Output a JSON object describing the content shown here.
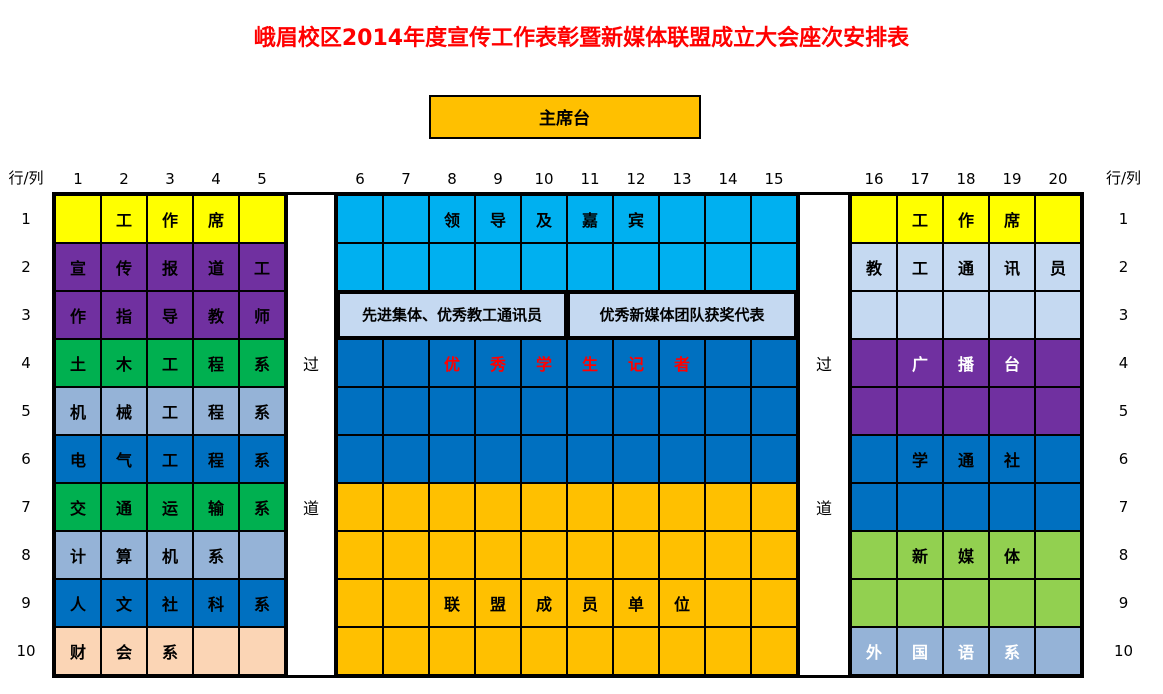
{
  "title": "峨眉校区2014年度宣传工作表彰暨新媒体联盟成立大会座次安排表",
  "stage_label": "主席台",
  "header": {
    "corner_left": "行/列",
    "corner_right": "行/列",
    "left_cols": [
      "1",
      "2",
      "3",
      "4",
      "5"
    ],
    "middle_cols": [
      "6",
      "7",
      "8",
      "9",
      "10",
      "11",
      "12",
      "13",
      "14",
      "15"
    ],
    "right_cols": [
      "16",
      "17",
      "18",
      "19",
      "20"
    ]
  },
  "row_numbers": [
    "1",
    "2",
    "3",
    "4",
    "5",
    "6",
    "7",
    "8",
    "9",
    "10"
  ],
  "aisles": {
    "left": {
      "top": "过",
      "bottom": "道"
    },
    "right": {
      "top": "过",
      "bottom": "道"
    }
  },
  "colors": {
    "yellow": "#FFFF00",
    "purple": "#7030A0",
    "green": "#00B050",
    "slate": "#95B3D7",
    "blue": "#0070C0",
    "peach": "#FBD5B5",
    "cyan": "#00B0F0",
    "ltblue": "#C5D9F1",
    "orange": "#FFC000",
    "lime": "#92D050",
    "red_text": "#FF0000",
    "white_text": "#FFFFFF",
    "black_text": "#000000",
    "title_red": "#FF0000",
    "stage_bg": "#FFC000"
  },
  "blocks": {
    "left": [
      {
        "bg": "yellow",
        "cells": [
          "",
          "工",
          "作",
          "席",
          ""
        ]
      },
      {
        "bg": "purple",
        "cells": [
          "宣",
          "传",
          "报",
          "道",
          "工"
        ]
      },
      {
        "bg": "purple",
        "cells": [
          "作",
          "指",
          "导",
          "教",
          "师"
        ]
      },
      {
        "bg": "green",
        "cells": [
          "土",
          "木",
          "工",
          "程",
          "系"
        ]
      },
      {
        "bg": "slate",
        "cells": [
          "机",
          "械",
          "工",
          "程",
          "系"
        ]
      },
      {
        "bg": "blue",
        "cells": [
          "电",
          "气",
          "工",
          "程",
          "系"
        ]
      },
      {
        "bg": "green",
        "cells": [
          "交",
          "通",
          "运",
          "输",
          "系"
        ]
      },
      {
        "bg": "slate",
        "cells": [
          "计",
          "算",
          "机",
          "系",
          ""
        ]
      },
      {
        "bg": "blue",
        "cells": [
          "人",
          "文",
          "社",
          "科",
          "系"
        ]
      },
      {
        "bg": "peach",
        "cells": [
          "财",
          "会",
          "系",
          "",
          ""
        ]
      }
    ],
    "middle": [
      {
        "bg": "cyan",
        "cells": [
          "",
          "",
          "领",
          "导",
          "及",
          "嘉",
          "宾",
          "",
          "",
          ""
        ]
      },
      {
        "bg": "cyan",
        "cells": [
          "",
          "",
          "",
          "",
          "",
          "",
          "",
          "",
          "",
          ""
        ]
      },
      {
        "bg": "ltblue",
        "merged": [
          {
            "text": "先进集体、优秀教工通讯员",
            "span": 5
          },
          {
            "text": "优秀新媒体团队获奖代表",
            "span": 5
          }
        ]
      },
      {
        "bg": "blue",
        "fg": "red_text",
        "cells": [
          "",
          "",
          "优",
          "秀",
          "学",
          "生",
          "记",
          "者",
          "",
          ""
        ]
      },
      {
        "bg": "blue",
        "cells": [
          "",
          "",
          "",
          "",
          "",
          "",
          "",
          "",
          "",
          ""
        ]
      },
      {
        "bg": "blue",
        "cells": [
          "",
          "",
          "",
          "",
          "",
          "",
          "",
          "",
          "",
          ""
        ]
      },
      {
        "bg": "orange",
        "cells": [
          "",
          "",
          "",
          "",
          "",
          "",
          "",
          "",
          "",
          ""
        ]
      },
      {
        "bg": "orange",
        "cells": [
          "",
          "",
          "",
          "",
          "",
          "",
          "",
          "",
          "",
          ""
        ]
      },
      {
        "bg": "orange",
        "cells": [
          "",
          "",
          "联",
          "盟",
          "成",
          "员",
          "单",
          "位",
          "",
          ""
        ]
      },
      {
        "bg": "orange",
        "cells": [
          "",
          "",
          "",
          "",
          "",
          "",
          "",
          "",
          "",
          ""
        ]
      }
    ],
    "right": [
      {
        "bg": "yellow",
        "cells": [
          "",
          "工",
          "作",
          "席",
          ""
        ]
      },
      {
        "bg": "ltblue",
        "cells": [
          "教",
          "工",
          "通",
          "讯",
          "员"
        ]
      },
      {
        "bg": "ltblue",
        "cells": [
          "",
          "",
          "",
          "",
          ""
        ]
      },
      {
        "bg": "purple",
        "fg": "white_text",
        "cells": [
          "",
          "广",
          "播",
          "台",
          ""
        ]
      },
      {
        "bg": "purple",
        "cells": [
          "",
          "",
          "",
          "",
          ""
        ]
      },
      {
        "bg": "blue",
        "cells": [
          "",
          "学",
          "通",
          "社",
          ""
        ]
      },
      {
        "bg": "blue",
        "cells": [
          "",
          "",
          "",
          "",
          ""
        ]
      },
      {
        "bg": "lime",
        "cells": [
          "",
          "新",
          "媒",
          "体",
          ""
        ]
      },
      {
        "bg": "lime",
        "cells": [
          "",
          "",
          "",
          "",
          ""
        ]
      },
      {
        "bg": "slate",
        "fg": "white_text",
        "cells": [
          "外",
          "国",
          "语",
          "系",
          ""
        ]
      }
    ]
  }
}
